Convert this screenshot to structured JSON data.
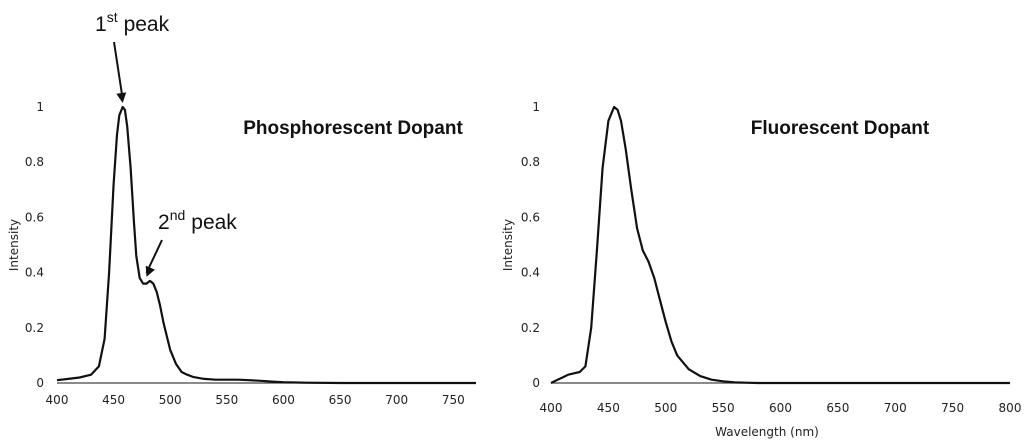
{
  "chart_data": [
    {
      "type": "line",
      "title": "Phosphorescent Dopant",
      "xlabel": "",
      "ylabel": "Intensity",
      "xlim": [
        400,
        770
      ],
      "ylim": [
        0,
        1
      ],
      "xticks": [
        "400",
        "450",
        "500",
        "550",
        "600",
        "650",
        "700",
        "750"
      ],
      "yticks": [
        "0",
        "0.2",
        "0.4",
        "0.6",
        "0.8",
        "1"
      ],
      "grid": false,
      "legend": "none",
      "series": [
        {
          "color": "#111111",
          "x": [
            400,
            410,
            420,
            430,
            437,
            442,
            446,
            450,
            453,
            455,
            458,
            460,
            462,
            465,
            468,
            470,
            473,
            476,
            479,
            482,
            485,
            488,
            491,
            494,
            497,
            500,
            505,
            510,
            515,
            520,
            530,
            540,
            550,
            560,
            570,
            580,
            590,
            600,
            620,
            650,
            700,
            770
          ],
          "y": [
            0.01,
            0.015,
            0.02,
            0.03,
            0.06,
            0.16,
            0.4,
            0.72,
            0.9,
            0.97,
            1.0,
            0.99,
            0.93,
            0.78,
            0.58,
            0.46,
            0.38,
            0.36,
            0.36,
            0.37,
            0.36,
            0.33,
            0.28,
            0.22,
            0.17,
            0.12,
            0.07,
            0.04,
            0.03,
            0.022,
            0.015,
            0.012,
            0.012,
            0.012,
            0.01,
            0.008,
            0.005,
            0.003,
            0.001,
            0.0,
            0.0,
            0.0
          ]
        }
      ],
      "annotations": [
        {
          "base": "1",
          "sup": "st",
          "text": "peak",
          "x": 458,
          "y": 1.0
        },
        {
          "base": "2",
          "sup": "nd",
          "text": "peak",
          "x": 479,
          "y": 0.37
        }
      ]
    },
    {
      "type": "line",
      "title": "Fluorescent Dopant",
      "xlabel": "Wavelength (nm)",
      "ylabel": "Intensity",
      "xlim": [
        400,
        800
      ],
      "ylim": [
        0,
        1
      ],
      "xticks": [
        "400",
        "450",
        "500",
        "550",
        "600",
        "650",
        "700",
        "750",
        "800"
      ],
      "yticks": [
        "0",
        "0.2",
        "0.4",
        "0.6",
        "0.8",
        "1"
      ],
      "grid": false,
      "legend": "none",
      "series": [
        {
          "color": "#111111",
          "x": [
            400,
            405,
            410,
            415,
            420,
            425,
            430,
            435,
            440,
            445,
            450,
            455,
            458,
            461,
            465,
            470,
            475,
            480,
            485,
            490,
            495,
            500,
            505,
            510,
            520,
            530,
            540,
            550,
            560,
            570,
            580,
            600,
            650,
            700,
            750,
            800
          ],
          "y": [
            0.0,
            0.01,
            0.02,
            0.03,
            0.035,
            0.04,
            0.06,
            0.2,
            0.48,
            0.78,
            0.95,
            1.0,
            0.99,
            0.95,
            0.85,
            0.7,
            0.56,
            0.48,
            0.44,
            0.38,
            0.3,
            0.22,
            0.15,
            0.1,
            0.05,
            0.025,
            0.012,
            0.006,
            0.002,
            0.001,
            0.0,
            0.0,
            0.0,
            0.0,
            0.0,
            0.0
          ]
        }
      ]
    }
  ]
}
